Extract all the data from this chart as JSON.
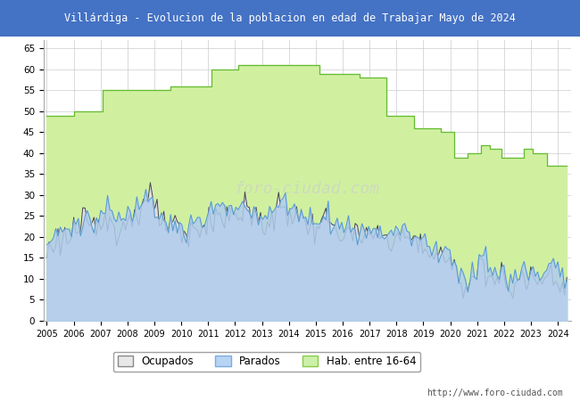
{
  "title": "Villárdiga - Evolucion de la poblacion en edad de Trabajar Mayo de 2024",
  "title_bg_color": "#4472c4",
  "title_text_color": "white",
  "ylim": [
    0,
    67
  ],
  "yticks": [
    0,
    5,
    10,
    15,
    20,
    25,
    30,
    35,
    40,
    45,
    50,
    55,
    60,
    65
  ],
  "legend_labels": [
    "Ocupados",
    "Parados",
    "Hab. entre 16-64"
  ],
  "legend_facecolors": [
    "#e8e8e8",
    "#b8d4f5",
    "#ccf0aa"
  ],
  "legend_edgecolors": [
    "#888888",
    "#7aaddd",
    "#88cc44"
  ],
  "url": "http://www.foro-ciudad.com",
  "bg_color": "white",
  "plot_bg_color": "white",
  "grid_color": "#cccccc",
  "hab_line_color": "#66bb33",
  "hab_fill_color": "#d0f0a0",
  "ocupados_line_color": "#444444",
  "ocupados_fill_color": "#e0e0e0",
  "parados_line_color": "#5599cc",
  "parados_fill_color": "#b0ccee",
  "x_ticks": [
    2005,
    2006,
    2007,
    2008,
    2009,
    2010,
    2011,
    2012,
    2013,
    2014,
    2015,
    2016,
    2017,
    2018,
    2019,
    2020,
    2021,
    2022,
    2023,
    2024
  ],
  "hab_data": {
    "x": [
      2005.0,
      2005.08,
      2005.92,
      2006.0,
      2006.08,
      2006.92,
      2007.0,
      2007.08,
      2007.92,
      2008.0,
      2008.08,
      2009.5,
      2009.58,
      2010.5,
      2010.58,
      2011.0,
      2011.08,
      2012.0,
      2012.08,
      2013.0,
      2013.08,
      2014.0,
      2014.08,
      2015.0,
      2015.08,
      2016.0,
      2016.08,
      2016.5,
      2016.58,
      2017.5,
      2017.58,
      2018.5,
      2018.58,
      2019.0,
      2019.08,
      2019.5,
      2019.58,
      2020.0,
      2020.08,
      2020.5,
      2020.58,
      2020.92,
      2021.0,
      2021.08,
      2021.33,
      2021.42,
      2021.75,
      2021.83,
      2022.0,
      2022.08,
      2022.67,
      2022.75,
      2023.0,
      2023.08,
      2023.5,
      2023.58,
      2024.33
    ],
    "y": [
      49,
      49,
      49,
      50,
      50,
      50,
      50,
      55,
      55,
      55,
      55,
      55,
      56,
      56,
      56,
      56,
      60,
      60,
      61,
      61,
      61,
      61,
      61,
      61,
      59,
      59,
      59,
      59,
      58,
      58,
      49,
      49,
      46,
      46,
      46,
      46,
      45,
      45,
      39,
      39,
      40,
      40,
      40,
      42,
      42,
      41,
      41,
      39,
      39,
      39,
      41,
      41,
      40,
      40,
      40,
      37,
      37
    ]
  }
}
